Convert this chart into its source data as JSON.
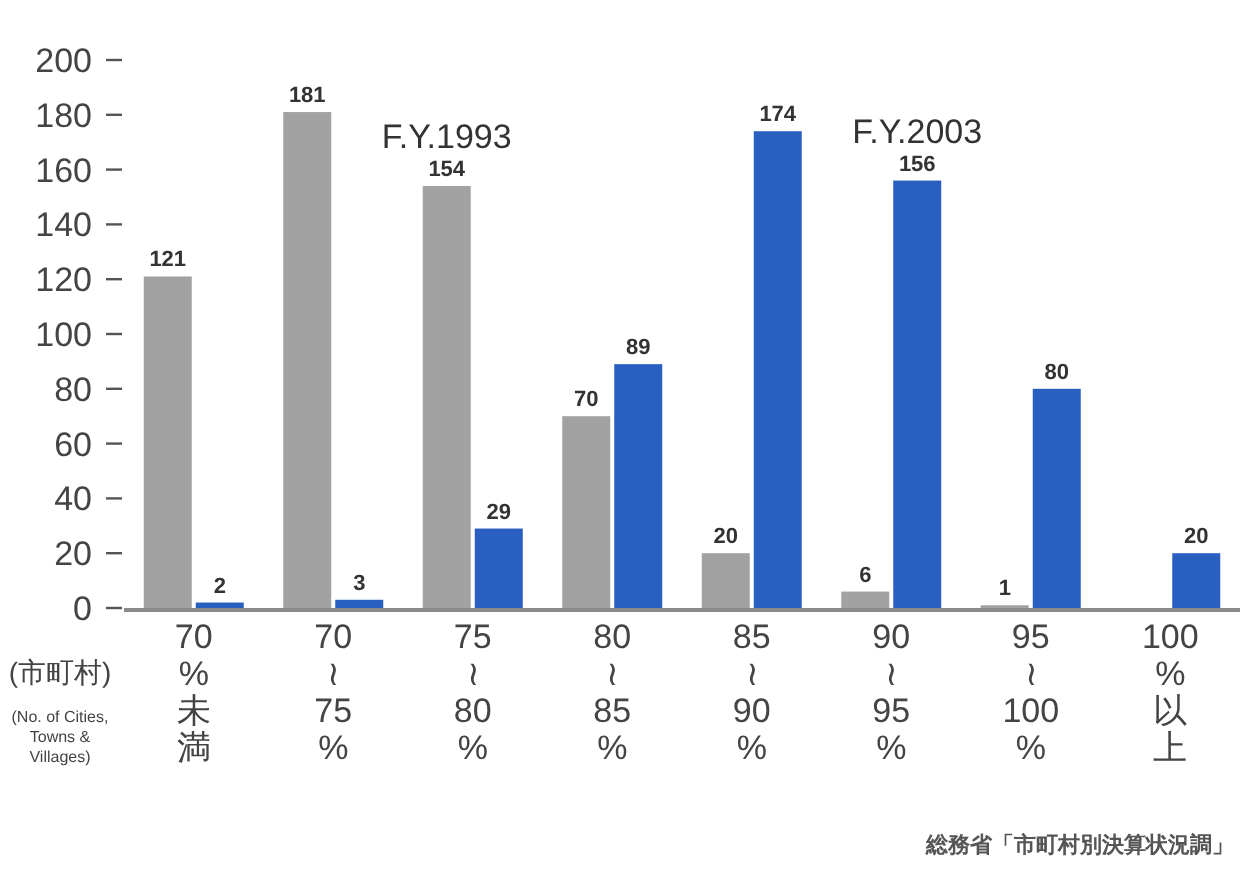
{
  "chart_data": {
    "type": "bar",
    "categories": [
      "70\n%\n未満",
      "70\n≀\n75\n%",
      "75\n≀\n80\n%",
      "80\n≀\n85\n%",
      "85\n≀\n90\n%",
      "90\n≀\n95\n%",
      "95\n≀\n100\n%",
      "100\n%\n以上"
    ],
    "series": [
      {
        "name": "F.Y.1993",
        "color": "#a2a2a2",
        "values": [
          121,
          181,
          154,
          70,
          20,
          6,
          1,
          null
        ]
      },
      {
        "name": "F.Y.2003",
        "color": "#2a5fc2",
        "values": [
          2,
          3,
          29,
          89,
          174,
          156,
          80,
          20
        ]
      }
    ],
    "ylabel": "(市町村)\n(No. of Cities,\nTowns &\nVillages)",
    "ylim": [
      0,
      200
    ],
    "yticks": [
      0,
      20,
      40,
      60,
      80,
      100,
      120,
      140,
      160,
      180,
      200
    ],
    "data_labels": true,
    "annotations": [
      "総務省「市町村別決算状況調」"
    ]
  }
}
